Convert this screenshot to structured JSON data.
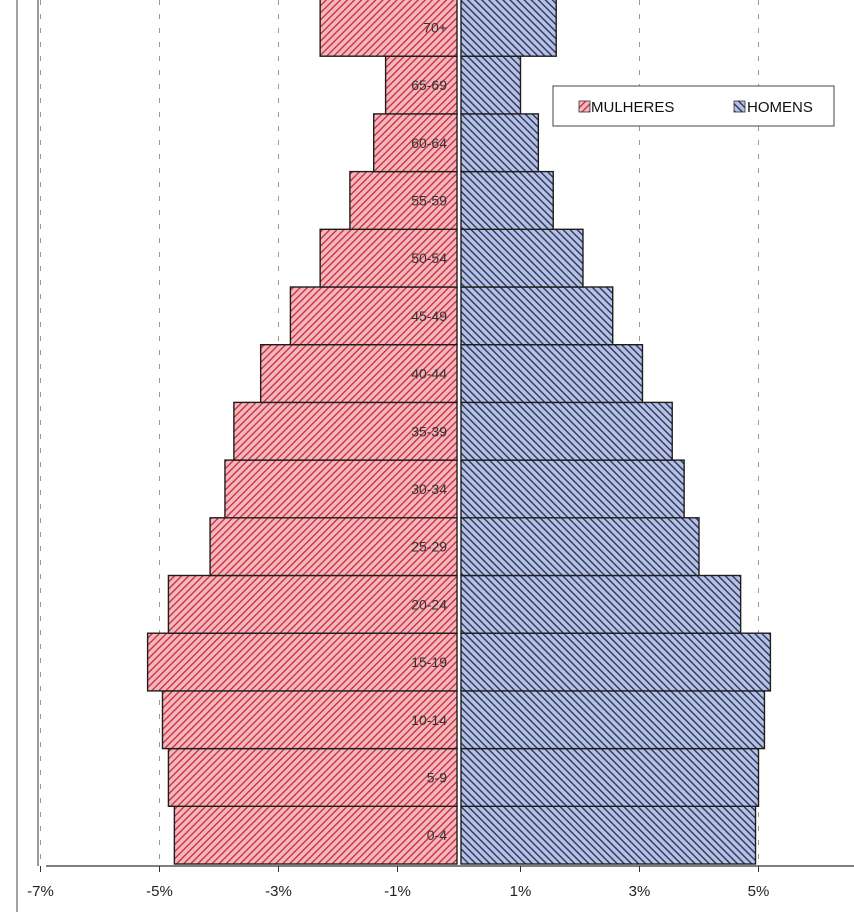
{
  "chart_data": {
    "type": "bar",
    "orientation": "horizontal-butterfly",
    "categories": [
      "0-4",
      "5-9",
      "10-14",
      "15-19",
      "20-24",
      "25-29",
      "30-34",
      "35-39",
      "40-44",
      "45-49",
      "50-54",
      "55-59",
      "60-64",
      "65-69",
      "70+"
    ],
    "series": [
      {
        "name": "MULHERES",
        "color": "#cc3344",
        "side": "left",
        "values": [
          4.75,
          4.85,
          4.95,
          5.2,
          4.85,
          4.15,
          3.9,
          3.75,
          3.3,
          2.8,
          2.3,
          1.8,
          1.4,
          1.2,
          2.3
        ]
      },
      {
        "name": "HOMENS",
        "color": "#2c3a66",
        "side": "right",
        "values": [
          4.95,
          5.0,
          5.1,
          5.2,
          4.7,
          4.0,
          3.75,
          3.55,
          3.05,
          2.55,
          2.05,
          1.55,
          1.3,
          1.0,
          1.6
        ]
      }
    ],
    "x_ticks": [
      "-7%",
      "-5%",
      "-3%",
      "-1%",
      "1%",
      "3%",
      "5%"
    ],
    "xlim": [
      -7,
      6.5
    ],
    "grid": "vertical-dashed",
    "legend_position": "top-right",
    "title": "",
    "xlabel": "",
    "ylabel": ""
  }
}
